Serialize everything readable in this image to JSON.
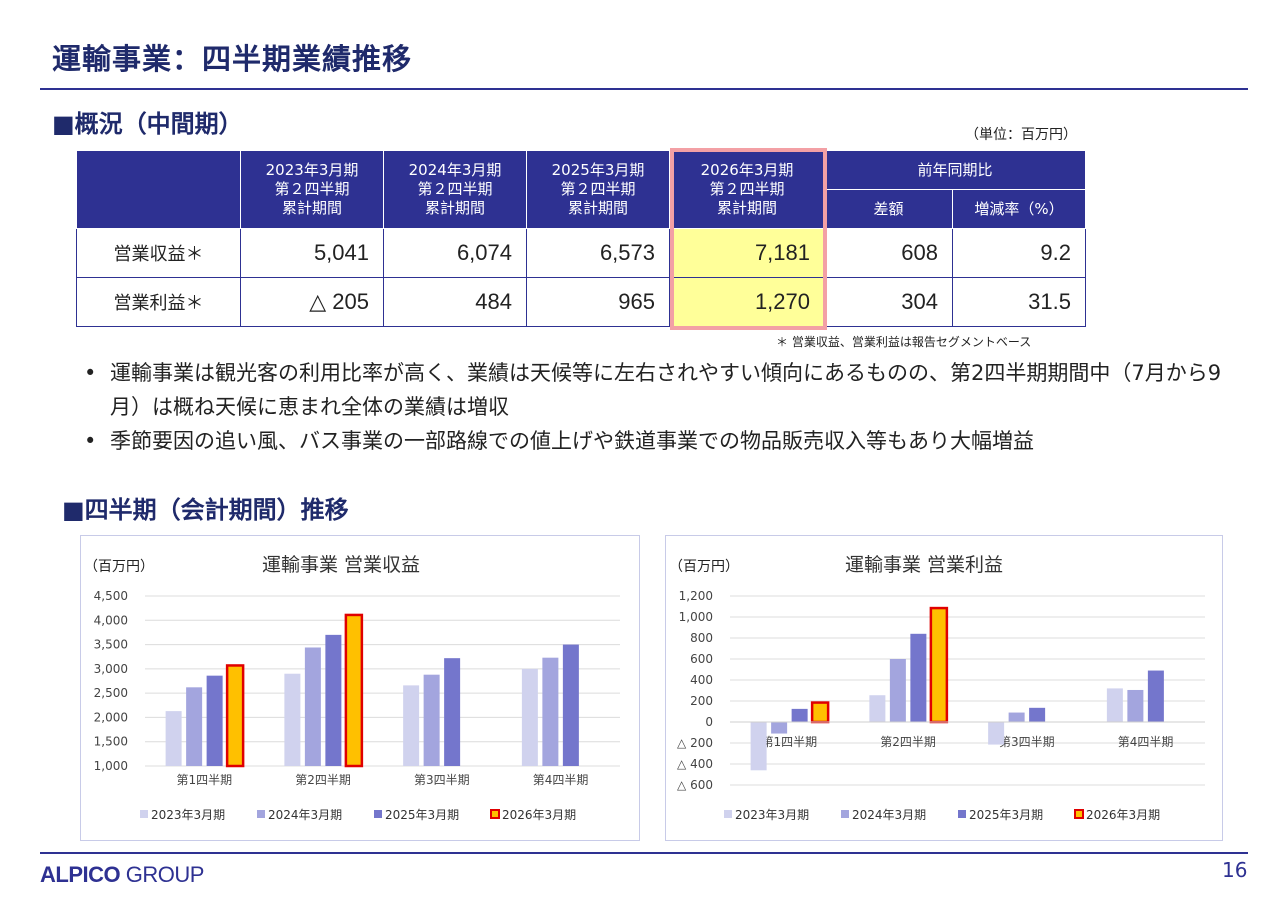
{
  "title": "運輸事業：四半期業績推移",
  "section1": "■概況（中間期）",
  "unit": "（単位：百万円）",
  "table": {
    "headers": [
      "2023年3月期\n第２四半期\n累計期間",
      "2024年3月期\n第２四半期\n累計期間",
      "2025年3月期\n第２四半期\n累計期間",
      "2026年3月期\n第２四半期\n累計期間"
    ],
    "yoy": "前年同期比",
    "diff": "差額",
    "rate": "増減率（%）",
    "rows": [
      {
        "label": "営業収益＊",
        "values": [
          "5,041",
          "6,074",
          "6,573",
          "7,181",
          "608",
          "9.2"
        ]
      },
      {
        "label": "営業利益＊",
        "values": [
          "△ 205",
          "484",
          "965",
          "1,270",
          "304",
          "31.5"
        ]
      }
    ]
  },
  "note": "＊ 営業収益、営業利益は報告セグメントベース",
  "bullets": [
    "運輸事業は観光客の利用比率が高く、業績は天候等に左右されやすい傾向にあるものの、第2四半期期間中（7月から9月）は概ね天候に恵まれ全体の業績は増収",
    "季節要因の追い風、バス事業の一部路線での値上げや鉄道事業での物品販売収入等もあり大幅増益"
  ],
  "bullet_mark": "•",
  "section2": "■四半期（会計期間）推移",
  "colors": {
    "navy": "#2e3192",
    "s2023": "#d0d2ee",
    "s2024": "#a3a5de",
    "s2025": "#7476cc",
    "s2026": "#ffc000",
    "s2026border": "#e00000"
  },
  "chart_data": [
    {
      "type": "bar",
      "title": "運輸事業  営業収益",
      "unit_label": "（百万円）",
      "categories": [
        "第1四半期",
        "第2四半期",
        "第3四半期",
        "第4四半期"
      ],
      "series": [
        {
          "name": "2023年3月期",
          "values": [
            2130,
            2900,
            2660,
            3000
          ]
        },
        {
          "name": "2024年3月期",
          "values": [
            2620,
            3440,
            2880,
            3230
          ]
        },
        {
          "name": "2025年3月期",
          "values": [
            2860,
            3700,
            3220,
            3500
          ]
        },
        {
          "name": "2026年3月期",
          "values": [
            3070,
            4110,
            null,
            null
          ]
        }
      ],
      "ylim": [
        1000,
        4500
      ],
      "ticks": [
        1000,
        1500,
        2000,
        2500,
        3000,
        3500,
        4000,
        4500
      ],
      "tick_labels": [
        "1,000",
        "1,500",
        "2,000",
        "2,500",
        "3,000",
        "3,500",
        "4,000",
        "4,500"
      ],
      "legend": "bottom",
      "grid": true
    },
    {
      "type": "bar",
      "title": "運輸事業  営業利益",
      "unit_label": "（百万円）",
      "categories": [
        "第1四半期",
        "第2四半期",
        "第3四半期",
        "第4四半期"
      ],
      "series": [
        {
          "name": "2023年3月期",
          "values": [
            -460,
            255,
            -215,
            320
          ]
        },
        {
          "name": "2024年3月期",
          "values": [
            -110,
            600,
            90,
            305
          ]
        },
        {
          "name": "2025年3月期",
          "values": [
            125,
            840,
            135,
            490
          ]
        },
        {
          "name": "2026年3月期",
          "values": [
            185,
            1085,
            null,
            null
          ]
        }
      ],
      "ylim": [
        -600,
        1200
      ],
      "ticks": [
        -600,
        -400,
        -200,
        0,
        200,
        400,
        600,
        800,
        1000,
        1200
      ],
      "tick_labels": [
        "△ 600",
        "△ 400",
        "△ 200",
        "0",
        "200",
        "400",
        "600",
        "800",
        "1,000",
        "1,200"
      ],
      "legend": "bottom",
      "grid": true
    }
  ],
  "footer": {
    "logo": "ALPICO GROUP",
    "logo_bold": "ALPICO",
    "logo_light": " GROUP",
    "page": "16"
  }
}
